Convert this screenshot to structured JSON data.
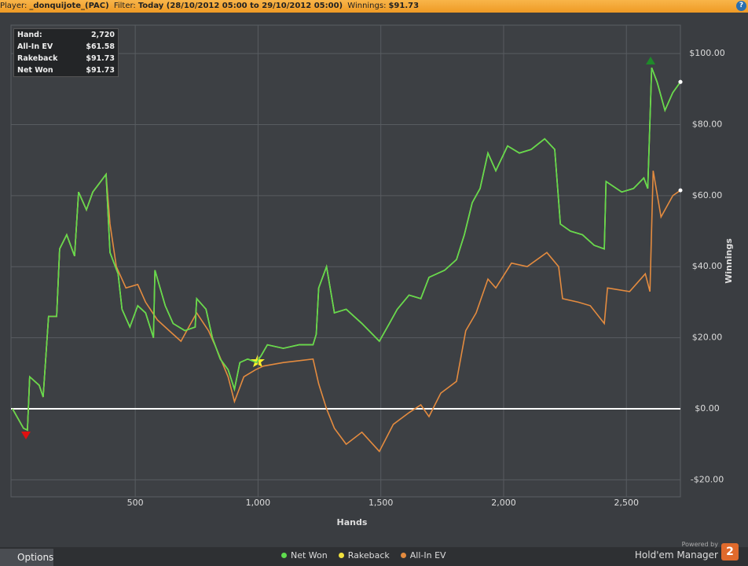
{
  "header": {
    "player_label": "Player:",
    "player": "_donquijote_(PAC)",
    "filter_label": "Filter:",
    "filter": "Today (28/10/2012 05:00 to 29/10/2012 05:00)",
    "winnings_label": "Winnings:",
    "winnings": "$91.73",
    "help": "?"
  },
  "stats": [
    [
      "Hand:",
      "2,720"
    ],
    [
      "All-In EV",
      "$61.58"
    ],
    [
      "Rakeback",
      "$91.73"
    ],
    [
      "Net Won",
      "$91.73"
    ]
  ],
  "chart_data": {
    "type": "line",
    "x_label": "Hands",
    "y_label": "Winnings",
    "xlim": [
      -6,
      2720
    ],
    "ylim": [
      -24.8,
      108
    ],
    "xticks": [
      500,
      {
        "value": 1000,
        "label": "1,000"
      },
      {
        "value": 1500,
        "label": "1,500"
      },
      {
        "value": 2000,
        "label": "2,000"
      },
      {
        "value": 2500,
        "label": "2,500"
      }
    ],
    "yticks": [
      {
        "value": -20,
        "label": "-$20.00"
      },
      {
        "value": 0,
        "label": "$0.00"
      },
      {
        "value": 20,
        "label": "$20.00"
      },
      {
        "value": 40,
        "label": "$40.00"
      },
      {
        "value": 60,
        "label": "$60.00"
      },
      {
        "value": 80,
        "label": "$80.00"
      },
      {
        "value": 100,
        "label": "$100.00"
      }
    ],
    "grid": true,
    "series": [
      {
        "name": "Net Won",
        "color": "#5fdc4e",
        "x": [
          0,
          45,
          61,
          70,
          109,
          125,
          147,
          180,
          192,
          221,
          253,
          269,
          301,
          327,
          381,
          397,
          430,
          446,
          478,
          510,
          542,
          574,
          580,
          622,
          654,
          702,
          744,
          750,
          788,
          814,
          846,
          878,
          904,
          926,
          958,
          994,
          1013,
          1038,
          1103,
          1167,
          1224,
          1237,
          1247,
          1279,
          1311,
          1359,
          1423,
          1494,
          1535,
          1567,
          1615,
          1663,
          1696,
          1760,
          1808,
          1840,
          1872,
          1904,
          1936,
          1968,
          2016,
          2064,
          2112,
          2167,
          2208,
          2231,
          2272,
          2321,
          2369,
          2410,
          2417,
          2481,
          2529,
          2571,
          2587,
          2603,
          2625,
          2657,
          2689,
          2720
        ],
        "values": [
          0,
          -5.5,
          -6,
          9,
          6.6,
          3.3,
          26,
          26,
          45,
          49,
          43,
          61,
          56,
          61,
          66,
          44,
          38,
          28,
          23,
          29,
          27,
          20,
          39,
          29,
          24,
          22,
          23,
          31,
          28,
          20,
          14,
          11,
          5.5,
          13,
          14,
          13,
          15,
          18,
          17,
          18,
          18,
          21,
          34,
          40,
          27,
          28,
          24,
          19,
          24,
          28,
          32,
          31,
          37,
          39,
          42,
          49,
          58,
          62,
          72,
          67,
          74,
          72,
          73,
          76,
          73,
          52,
          50,
          49,
          46,
          45,
          64,
          61,
          62,
          65,
          62,
          96,
          92,
          84,
          89,
          92
        ]
      },
      {
        "name": "Rakeback",
        "color": "#f2e23e",
        "x": [
          0,
          45,
          61,
          70,
          109,
          125,
          147,
          180,
          192,
          221,
          253,
          269,
          301,
          327,
          381,
          397,
          430,
          446,
          478,
          510,
          542,
          574,
          580,
          622,
          654,
          702,
          744,
          750,
          788,
          814,
          846,
          878,
          904,
          926,
          958,
          994,
          1013,
          1038,
          1103,
          1167,
          1224,
          1237,
          1247,
          1279,
          1311,
          1359,
          1423,
          1494,
          1535,
          1567,
          1615,
          1663,
          1696,
          1760,
          1808,
          1840,
          1872,
          1904,
          1936,
          1968,
          2016,
          2064,
          2112,
          2167,
          2208,
          2231,
          2272,
          2321,
          2369,
          2410,
          2417,
          2481,
          2529,
          2571,
          2587,
          2603,
          2625,
          2657,
          2689,
          2720
        ],
        "values": [
          0,
          -5.5,
          -6,
          9,
          6.6,
          3.3,
          26,
          26,
          45,
          49,
          43,
          61,
          56,
          61,
          66,
          44,
          38,
          28,
          23,
          29,
          27,
          20,
          39,
          29,
          24,
          22,
          23,
          31,
          28,
          20,
          14,
          11,
          5.5,
          13,
          14,
          13,
          15,
          18,
          17,
          18,
          18,
          21,
          34,
          40,
          27,
          28,
          24,
          19,
          24,
          28,
          32,
          31,
          37,
          39,
          42,
          49,
          58,
          62,
          72,
          67,
          74,
          72,
          73,
          76,
          73,
          52,
          50,
          49,
          46,
          45,
          64,
          61,
          62,
          65,
          62,
          96,
          92,
          84,
          89,
          92
        ]
      },
      {
        "name": "All-In EV",
        "color": "#e48b3f",
        "x": [
          0,
          45,
          61,
          70,
          109,
          125,
          147,
          180,
          192,
          221,
          253,
          269,
          301,
          327,
          381,
          397,
          423,
          462,
          510,
          542,
          590,
          638,
          686,
          750,
          798,
          830,
          878,
          904,
          942,
          990,
          1022,
          1103,
          1224,
          1247,
          1279,
          1311,
          1359,
          1423,
          1494,
          1551,
          1615,
          1663,
          1696,
          1744,
          1808,
          1846,
          1888,
          1936,
          1968,
          2032,
          2096,
          2176,
          2224,
          2240,
          2304,
          2353,
          2410,
          2423,
          2513,
          2577,
          2596,
          2609,
          2641,
          2689,
          2720
        ],
        "values": [
          0,
          -5.5,
          -6,
          9,
          6.6,
          3.3,
          26,
          26,
          45,
          49,
          43,
          61,
          56,
          61,
          66,
          52,
          40,
          34,
          35,
          30,
          25,
          22,
          19,
          27,
          22,
          17,
          9,
          2,
          9,
          11,
          12,
          13,
          14,
          7,
          0,
          -5.5,
          -10,
          -6.6,
          -12,
          -4.4,
          -1.1,
          1.1,
          -2.2,
          4.4,
          7.7,
          22,
          27,
          36.5,
          34,
          41,
          40,
          44,
          40,
          31,
          30,
          29,
          24,
          34,
          33,
          38,
          33,
          67,
          54,
          60,
          61.5
        ]
      }
    ]
  },
  "footer": {
    "options": "Options",
    "powered_by": "Powered by",
    "brand": "Hold'em Manager",
    "logo": "2"
  }
}
